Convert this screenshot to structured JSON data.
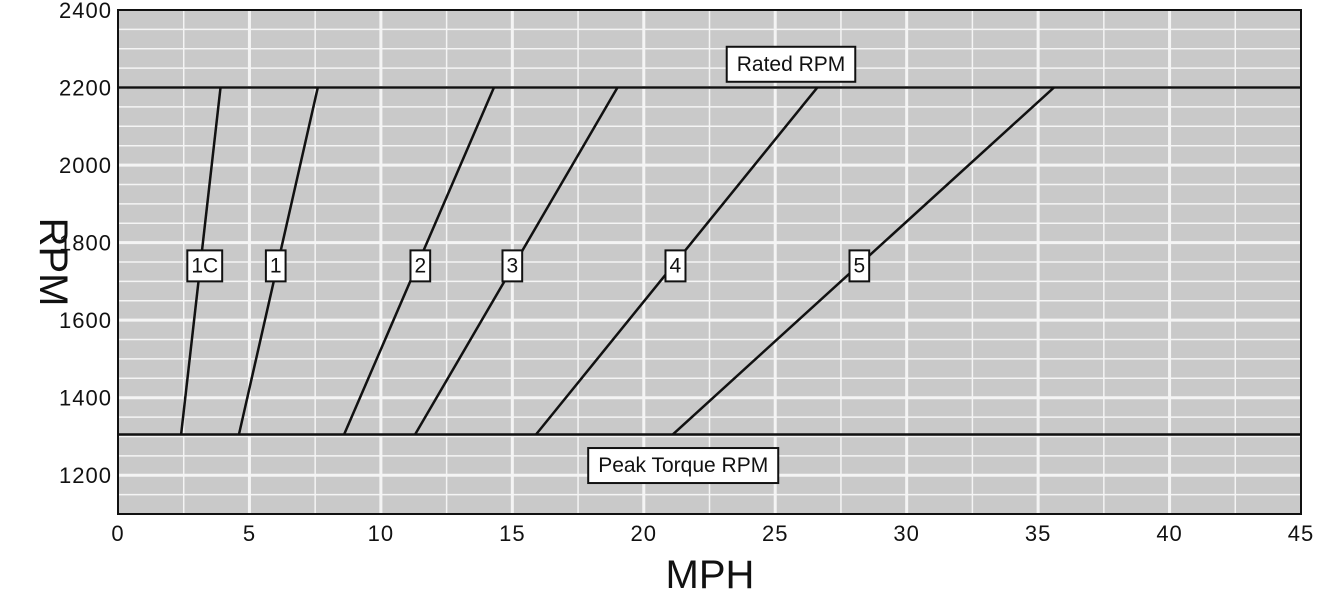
{
  "chart_data": {
    "type": "line",
    "xlabel": "MPH",
    "ylabel": "RPM",
    "xlim": [
      0,
      45
    ],
    "ylim": [
      1100,
      2400
    ],
    "x_ticks": [
      0,
      5,
      10,
      15,
      20,
      25,
      30,
      35,
      40,
      45
    ],
    "y_ticks": [
      1200,
      1400,
      1600,
      1800,
      2000,
      2200,
      2400
    ],
    "grid": true,
    "reference_lines": [
      {
        "name": "Rated RPM",
        "y": 2200,
        "label_x": 25.6,
        "label_y": 2260
      },
      {
        "name": "Peak Torque RPM",
        "y": 1305,
        "label_x": 21.5,
        "label_y": 1225
      }
    ],
    "series": [
      {
        "name": "1C",
        "x": [
          2.4,
          3.9
        ],
        "y": [
          1305,
          2200
        ],
        "label_x": 3.3,
        "label_y": 1740
      },
      {
        "name": "1",
        "x": [
          4.6,
          7.6
        ],
        "y": [
          1305,
          2200
        ],
        "label_x": 6.0,
        "label_y": 1740
      },
      {
        "name": "2",
        "x": [
          8.6,
          14.3
        ],
        "y": [
          1305,
          2200
        ],
        "label_x": 11.5,
        "label_y": 1740
      },
      {
        "name": "3",
        "x": [
          11.3,
          19.0
        ],
        "y": [
          1305,
          2200
        ],
        "label_x": 15.0,
        "label_y": 1740
      },
      {
        "name": "4",
        "x": [
          15.9,
          26.6
        ],
        "y": [
          1305,
          2200
        ],
        "label_x": 21.2,
        "label_y": 1740
      },
      {
        "name": "5",
        "x": [
          21.1,
          35.6
        ],
        "y": [
          1305,
          2200
        ],
        "label_x": 28.2,
        "label_y": 1740
      }
    ],
    "colors": {
      "plot_bg": "#c9c9c9",
      "grid": "#f4f4f4",
      "line": "#111111",
      "label_bg": "#ffffff"
    }
  }
}
